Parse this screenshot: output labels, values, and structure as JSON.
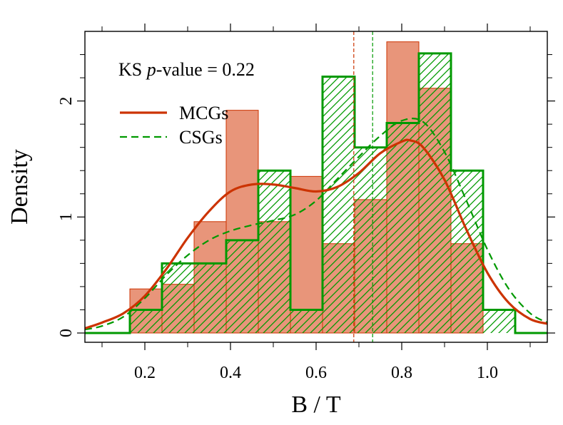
{
  "chart_data": {
    "type": "histogram",
    "xlabel": "B / T",
    "ylabel": "Density",
    "xlim": [
      0.06,
      1.14
    ],
    "ylim": [
      -0.08,
      2.6
    ],
    "xticks": [
      0.2,
      0.4,
      0.6,
      0.8,
      1.0
    ],
    "xtick_labels": [
      "0.2",
      "0.4",
      "0.6",
      "0.8",
      "1.0"
    ],
    "yticks": [
      0,
      1,
      2
    ],
    "ytick_labels": [
      "0",
      "1",
      "2"
    ],
    "annotation": {
      "prefix": "KS ",
      "italic": "p",
      "suffix": "-value = 0.22"
    },
    "legend": [
      {
        "name": "MCGs",
        "style": "solid"
      },
      {
        "name": "CSGs",
        "style": "dashed"
      }
    ],
    "colors": {
      "mcg_fill": "#e8957a",
      "mcg_line": "#cc3300",
      "csg_line": "#009900"
    },
    "bin_edges": [
      0.165,
      0.24,
      0.315,
      0.39,
      0.465,
      0.54,
      0.615,
      0.69,
      0.765,
      0.84,
      0.915,
      0.99,
      1.065
    ],
    "series": [
      {
        "name": "MCGs",
        "histogram": [
          0.38,
          0.42,
          0.96,
          1.92,
          0.96,
          1.35,
          0.77,
          1.15,
          2.51,
          2.11,
          0.77,
          0.0
        ],
        "kde_x": [
          0.06,
          0.1,
          0.15,
          0.2,
          0.25,
          0.3,
          0.35,
          0.4,
          0.45,
          0.5,
          0.55,
          0.6,
          0.65,
          0.7,
          0.75,
          0.8,
          0.82,
          0.85,
          0.9,
          0.95,
          1.0,
          1.05,
          1.1,
          1.14
        ],
        "kde_y": [
          0.04,
          0.09,
          0.17,
          0.32,
          0.55,
          0.82,
          1.05,
          1.22,
          1.28,
          1.28,
          1.25,
          1.22,
          1.26,
          1.38,
          1.55,
          1.65,
          1.66,
          1.6,
          1.32,
          0.9,
          0.52,
          0.26,
          0.12,
          0.08
        ],
        "median": 0.688
      },
      {
        "name": "CSGs",
        "histogram": [
          0.2,
          0.6,
          0.6,
          0.8,
          1.4,
          0.2,
          2.21,
          1.6,
          1.81,
          2.41,
          1.4,
          0.2
        ],
        "kde_x": [
          0.06,
          0.1,
          0.15,
          0.2,
          0.25,
          0.3,
          0.35,
          0.4,
          0.45,
          0.5,
          0.55,
          0.6,
          0.65,
          0.7,
          0.75,
          0.8,
          0.85,
          0.9,
          0.95,
          1.0,
          1.05,
          1.1,
          1.14
        ],
        "kde_y": [
          0.03,
          0.06,
          0.14,
          0.3,
          0.5,
          0.67,
          0.8,
          0.88,
          0.93,
          0.97,
          1.02,
          1.14,
          1.33,
          1.52,
          1.7,
          1.83,
          1.82,
          1.56,
          1.15,
          0.72,
          0.38,
          0.17,
          0.09
        ],
        "median": 0.732
      }
    ]
  }
}
